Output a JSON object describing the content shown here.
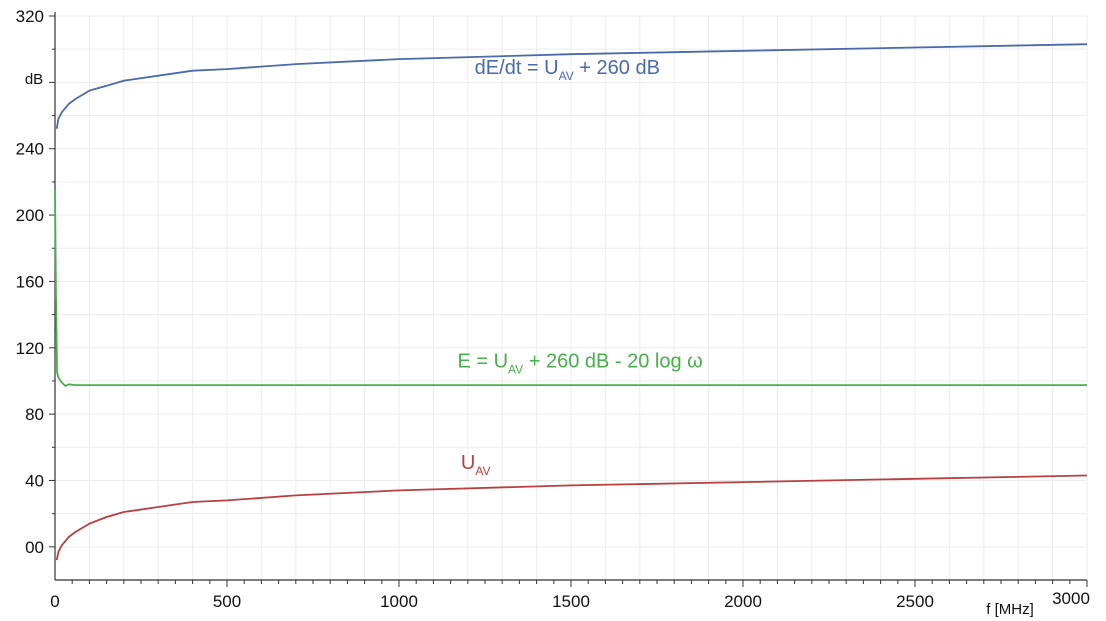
{
  "chart_data": {
    "type": "line",
    "title": "",
    "xlabel": "f [MHz]",
    "ylabel": "dB",
    "xlim": [
      0,
      3000
    ],
    "ylim": [
      -20,
      320
    ],
    "grid": true,
    "x_ticks": [
      {
        "value": 0,
        "label": "0"
      },
      {
        "value": 500,
        "label": "500"
      },
      {
        "value": 1000,
        "label": "1000"
      },
      {
        "value": 1500,
        "label": "1500"
      },
      {
        "value": 2000,
        "label": "2000"
      },
      {
        "value": 2500,
        "label": "2500"
      },
      {
        "value": 3000,
        "label": "3000"
      }
    ],
    "y_ticks": [
      {
        "value": 0,
        "label": "00"
      },
      {
        "value": 40,
        "label": "40"
      },
      {
        "value": 80,
        "label": "80"
      },
      {
        "value": 120,
        "label": "120"
      },
      {
        "value": 160,
        "label": "160"
      },
      {
        "value": 200,
        "label": "200"
      },
      {
        "value": 240,
        "label": "240"
      },
      {
        "value": 320,
        "label": "320"
      }
    ],
    "series": [
      {
        "color": "#4a6aac",
        "label": {
          "pre": "dE/dt = U",
          "sub": "AV",
          "post": " + 260 dB"
        },
        "label_at": [
          1220,
          285
        ],
        "x": [
          5,
          10,
          20,
          40,
          60,
          100,
          150,
          200,
          300,
          400,
          500,
          700,
          1000,
          1500,
          2000,
          2500,
          3000
        ],
        "y": [
          252,
          258,
          262,
          267,
          270,
          275,
          278,
          281,
          284,
          287,
          288,
          291,
          294,
          297,
          299,
          301,
          303
        ]
      },
      {
        "color": "#48b048",
        "label": {
          "pre": "E = U",
          "sub": "AV",
          "post": " + 260 dB - 20 log ω"
        },
        "label_at": [
          1170,
          108
        ],
        "x": [
          0,
          3,
          6,
          10,
          20,
          30,
          40,
          60,
          100,
          200,
          500,
          1000,
          1500,
          2000,
          2500,
          3000
        ],
        "y": [
          215,
          150,
          105,
          102,
          99,
          97,
          98,
          97.5,
          97.5,
          97.5,
          97.5,
          97.5,
          97.5,
          97.5,
          97.5,
          97.5
        ]
      },
      {
        "color": "#b84040",
        "label": {
          "pre": "U",
          "sub": "AV",
          "post": ""
        },
        "label_at": [
          1180,
          47
        ],
        "x": [
          5,
          10,
          20,
          40,
          60,
          100,
          150,
          200,
          300,
          400,
          500,
          700,
          1000,
          1500,
          2000,
          2500,
          3000
        ],
        "y": [
          -8,
          -3,
          1,
          6,
          9,
          14,
          18,
          21,
          24,
          27,
          28,
          31,
          34,
          37,
          39,
          41,
          43
        ]
      }
    ]
  }
}
